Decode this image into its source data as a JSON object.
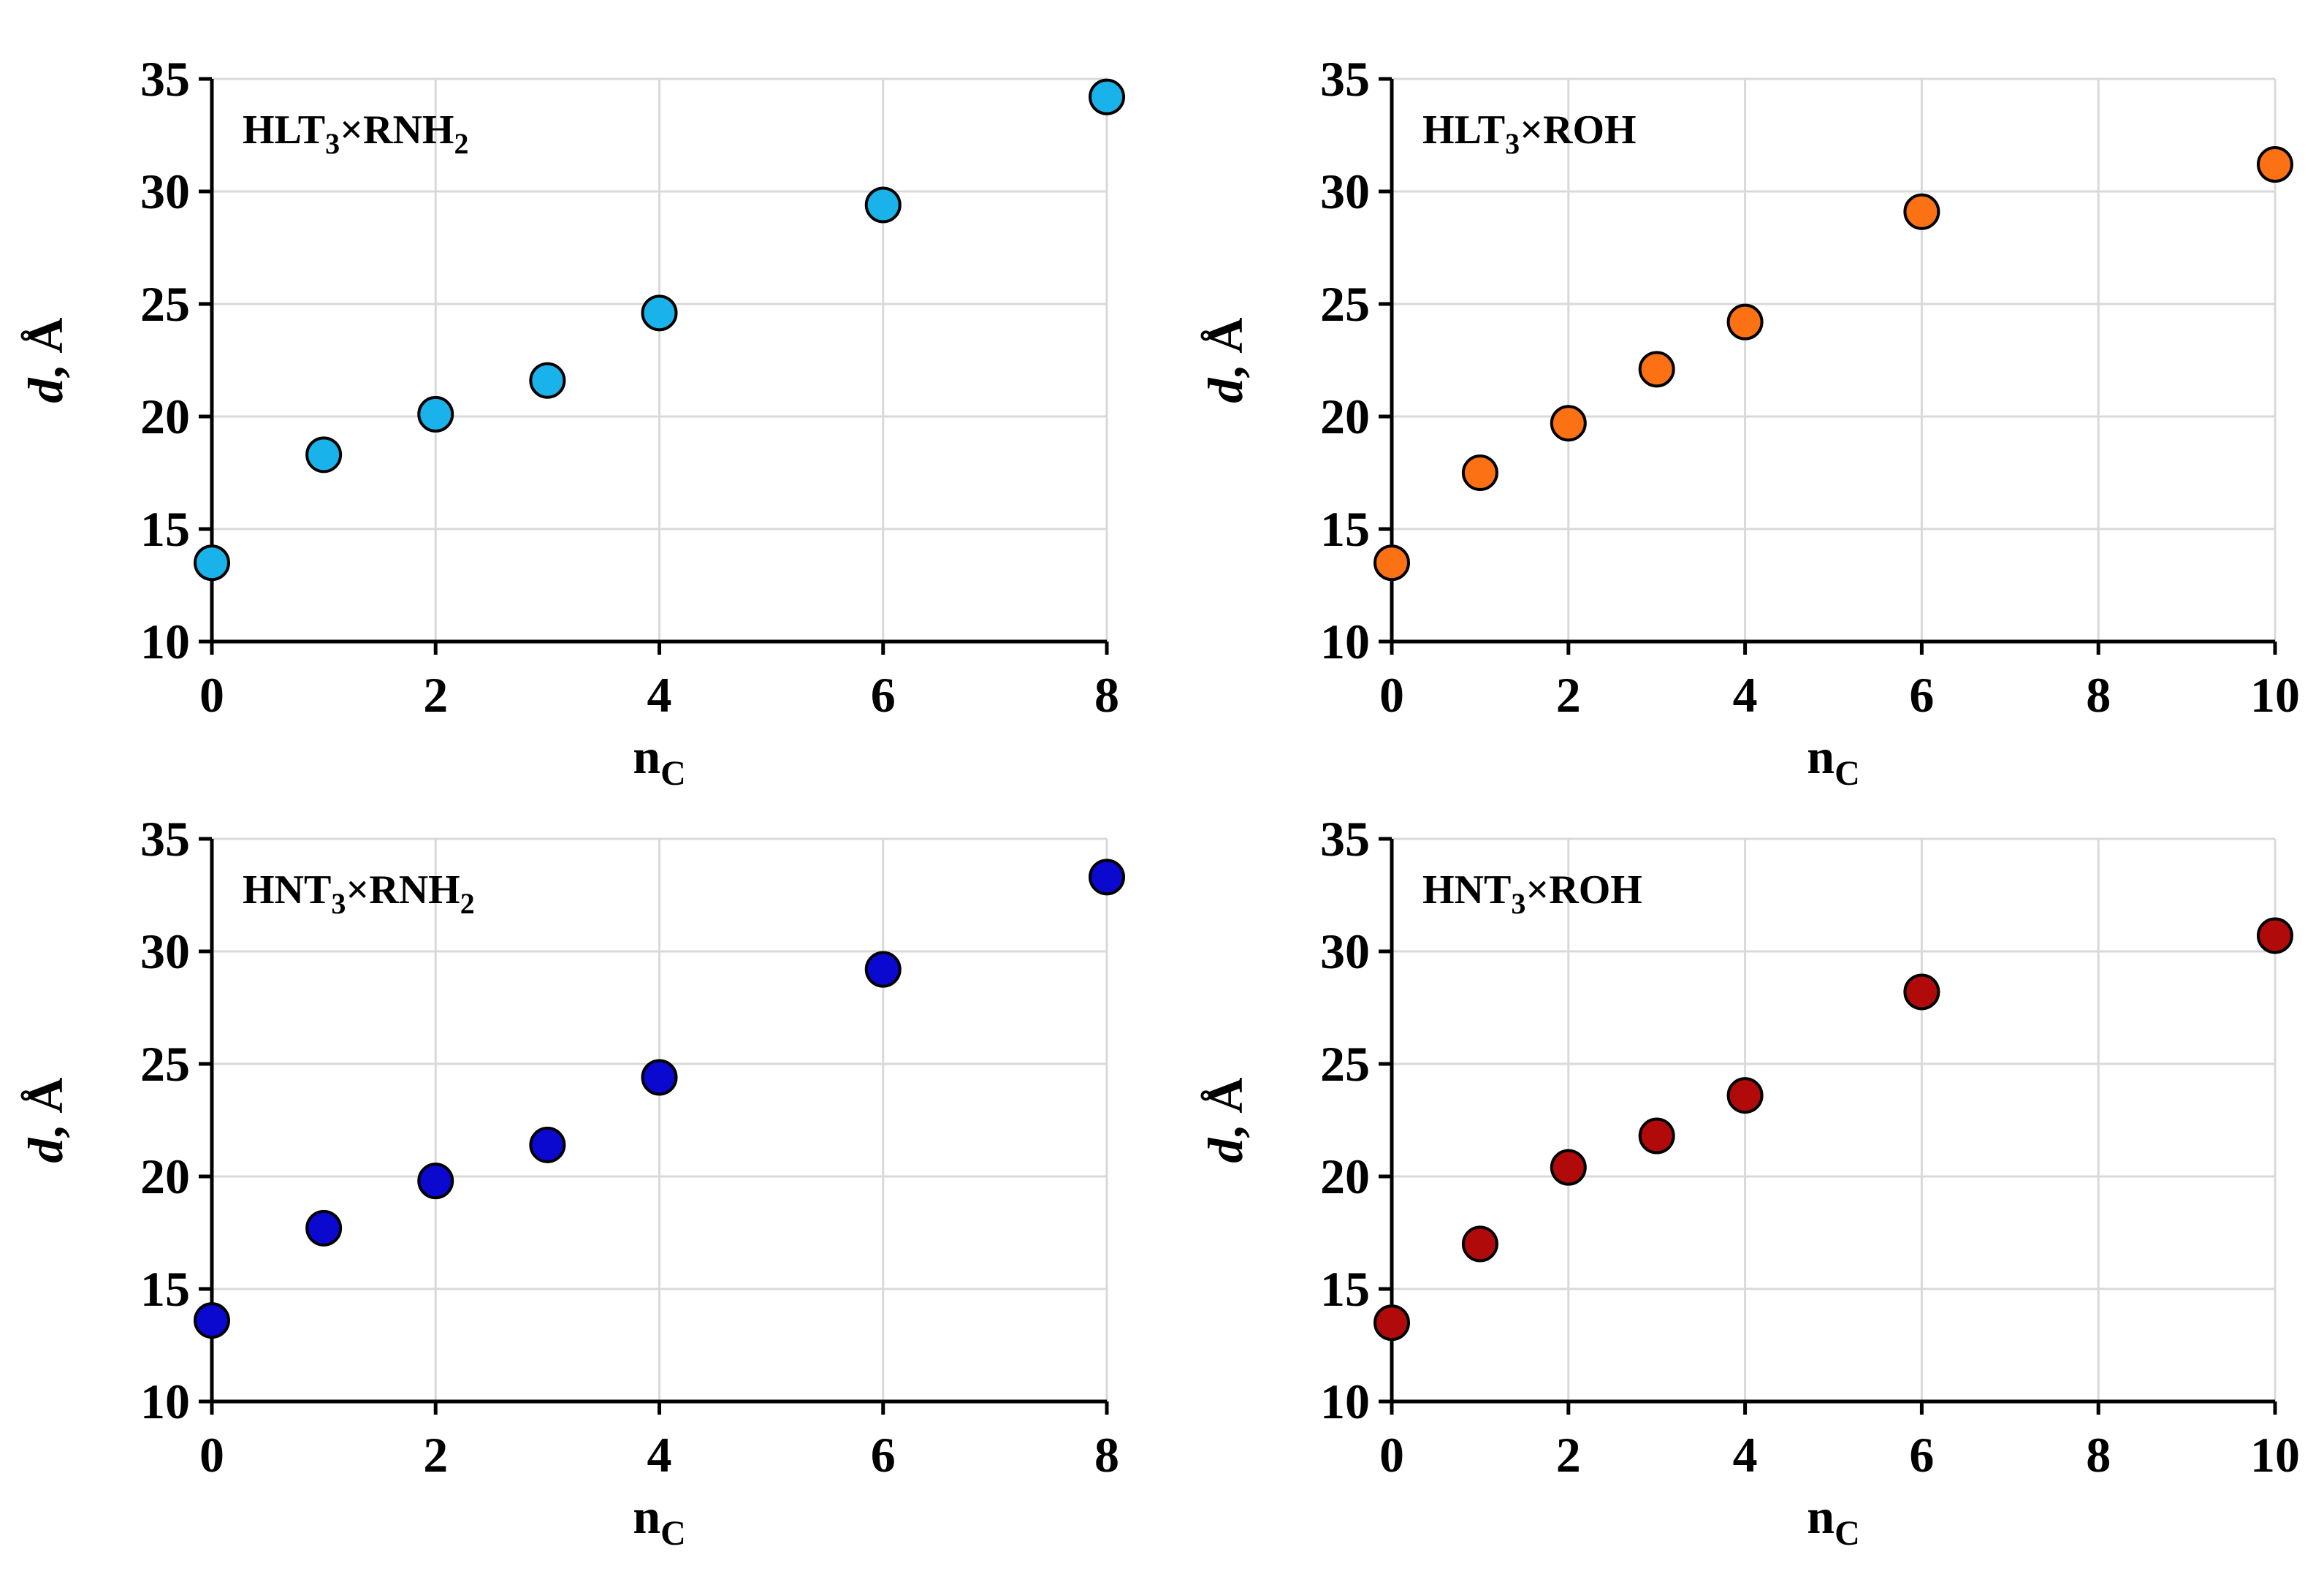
{
  "chart_data": [
    {
      "type": "scatter",
      "title": "HLT3×RNH2",
      "title_parts": {
        "a": "HLT",
        "a_sub": "3",
        "b": "×RNH",
        "b_sub": "2"
      },
      "xlabel": "n",
      "xlabel_sub": "C",
      "ylabel_italic": "d",
      "ylabel_rest": ", Å",
      "xlim": [
        0,
        8
      ],
      "xticks": [
        0,
        2,
        4,
        6,
        8
      ],
      "ylim": [
        10,
        35
      ],
      "yticks": [
        10,
        15,
        20,
        25,
        30,
        35
      ],
      "color": "#1ab2ea",
      "x": [
        0,
        1,
        2,
        3,
        4,
        6,
        8
      ],
      "y": [
        13.5,
        18.3,
        20.1,
        21.6,
        24.6,
        29.4,
        34.2
      ]
    },
    {
      "type": "scatter",
      "title": "HLT3×ROH",
      "title_parts": {
        "a": "HLT",
        "a_sub": "3",
        "b": "×ROH",
        "b_sub": ""
      },
      "xlabel": "n",
      "xlabel_sub": "C",
      "ylabel_italic": "d",
      "ylabel_rest": ", Å",
      "xlim": [
        0,
        10
      ],
      "xticks": [
        0,
        2,
        4,
        6,
        8,
        10
      ],
      "ylim": [
        10,
        35
      ],
      "yticks": [
        10,
        15,
        20,
        25,
        30,
        35
      ],
      "color": "#fc7114",
      "x": [
        0,
        1,
        2,
        3,
        4,
        6,
        10
      ],
      "y": [
        13.5,
        17.5,
        19.7,
        22.1,
        24.2,
        29.1,
        31.2
      ]
    },
    {
      "type": "scatter",
      "title": "HNT3×RNH2",
      "title_parts": {
        "a": "HNT",
        "a_sub": "3",
        "b": "×RNH",
        "b_sub": "2"
      },
      "xlabel": "n",
      "xlabel_sub": "C",
      "ylabel_italic": "d",
      "ylabel_rest": ", Å",
      "xlim": [
        0,
        8
      ],
      "xticks": [
        0,
        2,
        4,
        6,
        8
      ],
      "ylim": [
        10,
        35
      ],
      "yticks": [
        10,
        15,
        20,
        25,
        30,
        35
      ],
      "color": "#0b08d0",
      "x": [
        0,
        1,
        2,
        3,
        4,
        6,
        8
      ],
      "y": [
        13.6,
        17.7,
        19.8,
        21.4,
        24.4,
        29.2,
        33.3
      ]
    },
    {
      "type": "scatter",
      "title": "HNT3×ROH",
      "title_parts": {
        "a": "HNT",
        "a_sub": "3",
        "b": "×ROH",
        "b_sub": ""
      },
      "xlabel": "n",
      "xlabel_sub": "C",
      "ylabel_italic": "d",
      "ylabel_rest": ", Å",
      "xlim": [
        0,
        10
      ],
      "xticks": [
        0,
        2,
        4,
        6,
        8,
        10
      ],
      "ylim": [
        10,
        35
      ],
      "yticks": [
        10,
        15,
        20,
        25,
        30,
        35
      ],
      "color": "#b00a0a",
      "x": [
        0,
        1,
        2,
        3,
        4,
        6,
        10
      ],
      "y": [
        13.5,
        17.0,
        20.4,
        21.8,
        23.6,
        28.2,
        30.7
      ]
    }
  ]
}
